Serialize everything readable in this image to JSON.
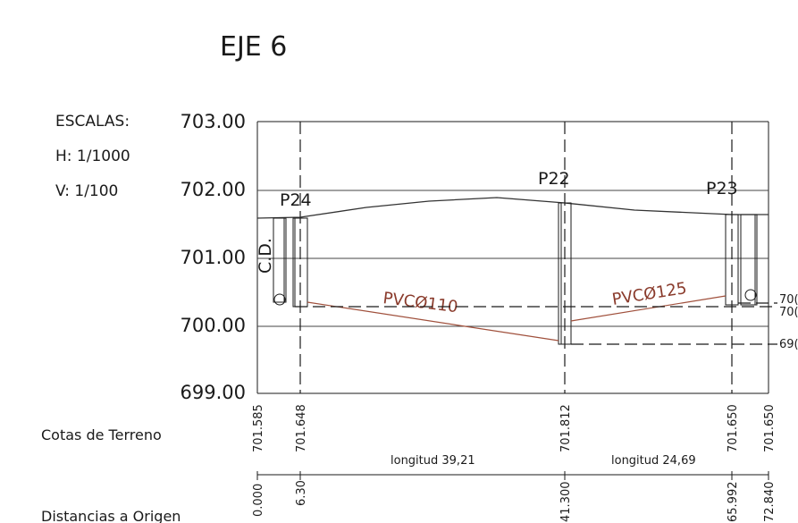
{
  "title": "EJE 6",
  "scales": {
    "heading": "ESCALAS:",
    "horizontal": "H: 1/1000",
    "vertical": "V: 1/100"
  },
  "y_axis": {
    "ticks": [
      "703.00",
      "702.00",
      "701.00",
      "700.00",
      "699.00"
    ]
  },
  "wells": [
    {
      "label": "P24"
    },
    {
      "label": "P22"
    },
    {
      "label": "P23"
    }
  ],
  "side_label": "C.D.",
  "pipes": [
    {
      "label": "PVCØ110"
    },
    {
      "label": "PVCØ125"
    }
  ],
  "right_cut_labels": [
    "70(",
    "70(",
    "69("
  ],
  "rows": {
    "terrain_label": "Cotas de Terreno",
    "distance_label": "Distancias a Origen"
  },
  "terrain_values": [
    "701.585",
    "701.648",
    "701.812",
    "701.650",
    "701.650"
  ],
  "distance_values": [
    "0.000",
    "6.30",
    "41.300",
    "65.992",
    "72.840"
  ],
  "lengths": [
    "longitud 39,21",
    "longitud 24,69"
  ],
  "colors": {
    "line": "#1a1a1a",
    "pipe": "#a0503c",
    "grid": "#444444"
  }
}
